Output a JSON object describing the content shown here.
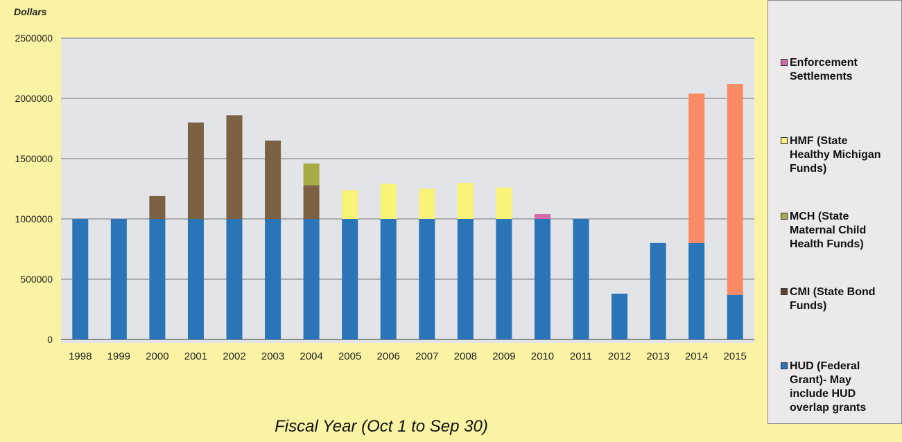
{
  "chart_data": {
    "type": "bar",
    "stacked": true,
    "title": "",
    "xlabel": "Fiscal Year (Oct 1 to Sep 30)",
    "ylabel": "Dollars",
    "ylim": [
      0,
      2500000
    ],
    "yticks": [
      "0",
      "500000",
      "1000000",
      "1500000",
      "2000000",
      "2500000"
    ],
    "grid": true,
    "legend_position": "right",
    "categories": [
      "1998",
      "1999",
      "2000",
      "2001",
      "2002",
      "2003",
      "2004",
      "2005",
      "2006",
      "2007",
      "2008",
      "2009",
      "2010",
      "2011",
      "2012",
      "2013",
      "2014",
      "2015"
    ],
    "series": [
      {
        "name": "HUD (Federal Grant)- May include HUD overlap grants",
        "color": "#2a74b8",
        "values": [
          1000000,
          1000000,
          1000000,
          1000000,
          1000000,
          1000000,
          1000000,
          1000000,
          1000000,
          1000000,
          1000000,
          1000000,
          1000000,
          1000000,
          380000,
          800000,
          800000,
          370000
        ]
      },
      {
        "name": "CMI (State Bond Funds)",
        "color": "#7b6142",
        "values": [
          0,
          0,
          190000,
          800000,
          860000,
          650000,
          280000,
          0,
          0,
          0,
          0,
          0,
          0,
          0,
          0,
          0,
          0,
          0
        ]
      },
      {
        "name": "MCH (State Maternal Child Health Funds)",
        "color": "#a8aa44",
        "values": [
          0,
          0,
          0,
          0,
          0,
          0,
          180000,
          0,
          0,
          0,
          0,
          0,
          0,
          0,
          0,
          0,
          0,
          0
        ]
      },
      {
        "name": "HMF (State Healthy Michigan Funds)",
        "color": "#f8f276",
        "values": [
          0,
          0,
          0,
          0,
          0,
          0,
          0,
          240000,
          290000,
          250000,
          300000,
          260000,
          0,
          0,
          0,
          0,
          0,
          0
        ]
      },
      {
        "name": "Enforcement Settlements",
        "color": "#d36aa8",
        "values": [
          0,
          0,
          0,
          0,
          0,
          0,
          0,
          0,
          0,
          0,
          0,
          0,
          40000,
          0,
          0,
          0,
          0,
          0
        ]
      },
      {
        "name": "",
        "color": "#f98a64",
        "values": [
          0,
          0,
          0,
          0,
          0,
          0,
          0,
          0,
          0,
          0,
          0,
          0,
          0,
          0,
          0,
          0,
          1240000,
          1750000
        ]
      }
    ]
  },
  "legend": [
    {
      "label": "Enforcement\nSettlements",
      "color": "#d36aa8"
    },
    {
      "label": "HMF (State\nHealthy Michigan\nFunds)",
      "color": "#f8f276"
    },
    {
      "label": "MCH (State\nMaternal Child\nHealth Funds)",
      "color": "#a8aa44"
    },
    {
      "label": "CMI (State Bond\nFunds)",
      "color": "#5c4632"
    },
    {
      "label": "HUD (Federal\nGrant)- May\ninclude HUD\noverlap grants",
      "color": "#2a74b8"
    }
  ]
}
